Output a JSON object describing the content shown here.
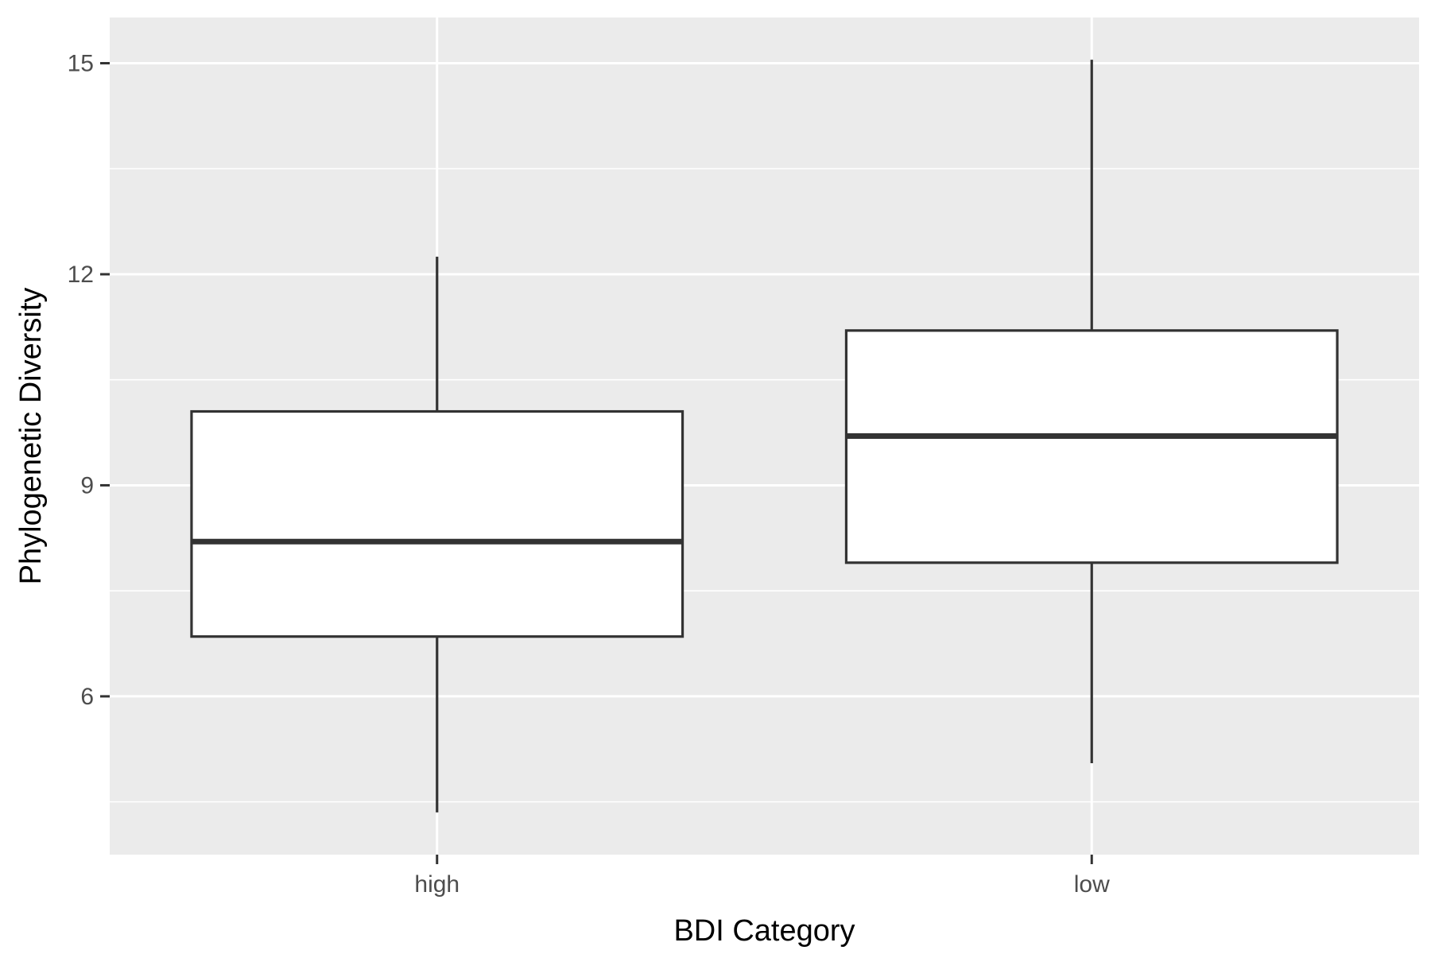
{
  "chart_data": {
    "type": "boxplot",
    "title": "",
    "xlabel": "BDI Category",
    "ylabel": "Phylogenetic Diversity",
    "categories": [
      "high",
      "low"
    ],
    "boxes": [
      {
        "category": "high",
        "whisker_low": 4.35,
        "q1": 6.85,
        "median": 8.2,
        "q3": 10.05,
        "whisker_high": 12.25
      },
      {
        "category": "low",
        "whisker_low": 5.05,
        "q1": 7.9,
        "median": 9.7,
        "q3": 11.2,
        "whisker_high": 15.05
      }
    ],
    "ylim": [
      3.75,
      15.65
    ],
    "yticks": [
      6,
      9,
      12,
      15
    ],
    "ytick_labels": [
      "6",
      "9",
      "12",
      "15"
    ],
    "grid": true,
    "colors": {
      "panel": "#ebebeb",
      "grid": "#ffffff",
      "box_fill": "#ffffff",
      "box_stroke": "#333333",
      "tick_label": "#4d4d4d",
      "axis_title": "#000000"
    }
  }
}
